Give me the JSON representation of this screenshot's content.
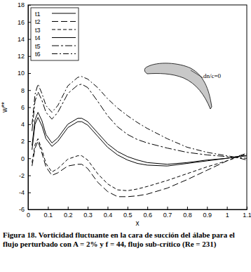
{
  "chart_data": {
    "type": "line",
    "title": "Figura 18. Vorticidad fluctuante en la cara de succión del álabe para el flujo perturbado con A = 2% y f = 44, flujo sub-crítico (Re = 231)",
    "x_label": "x",
    "y_label": "w**",
    "annotations": [
      "dn/c=0"
    ],
    "x": [
      0.02,
      0.035,
      0.05,
      0.07,
      0.09,
      0.12,
      0.15,
      0.2,
      0.25,
      0.27,
      0.3,
      0.35,
      0.4,
      0.45,
      0.5,
      0.55,
      0.6,
      0.7,
      0.8,
      0.9,
      1.0,
      1.05,
      1.1
    ],
    "series": [
      {
        "name": "t1",
        "color": "#000000",
        "line_style": "solid",
        "values": [
          1.0,
          4.0,
          4.8,
          3.8,
          2.3,
          1.4,
          2.0,
          3.6,
          4.3,
          4.3,
          3.9,
          2.6,
          1.3,
          0.4,
          -0.2,
          -0.6,
          -0.8,
          -0.9,
          -0.6,
          -0.3,
          0.0,
          0.2,
          0.3
        ]
      },
      {
        "name": "t2",
        "color": "#000000",
        "line_style": "longdash",
        "values": [
          -0.9,
          1.2,
          2.0,
          0.6,
          -1.0,
          -2.0,
          -1.7,
          -0.9,
          -0.7,
          -0.7,
          -1.2,
          -2.8,
          -3.9,
          -4.5,
          -4.5,
          -4.4,
          -4.2,
          -3.5,
          -2.5,
          -1.4,
          -0.3,
          0.2,
          0.6
        ]
      },
      {
        "name": "t3",
        "color": "#000000",
        "line_style": "dashed",
        "values": [
          -0.5,
          1.6,
          2.3,
          1.0,
          -0.6,
          -1.6,
          -1.2,
          -0.1,
          0.3,
          0.3,
          -0.2,
          -1.8,
          -3.0,
          -3.7,
          -3.8,
          -3.6,
          -3.3,
          -2.6,
          -1.8,
          -1.0,
          -0.3,
          0.1,
          0.5
        ]
      },
      {
        "name": "t4",
        "color": "#000000",
        "line_style": "solid",
        "values": [
          1.5,
          4.5,
          5.4,
          4.4,
          2.8,
          1.8,
          2.4,
          4.0,
          4.7,
          4.7,
          4.3,
          3.0,
          1.7,
          0.8,
          0.2,
          -0.2,
          -0.5,
          -0.7,
          -0.5,
          -0.2,
          0.0,
          0.2,
          0.3
        ]
      },
      {
        "name": "t5",
        "color": "#000000",
        "line_style": "dashdot2",
        "values": [
          3.2,
          6.7,
          7.8,
          6.8,
          5.4,
          4.6,
          5.4,
          7.6,
          8.6,
          8.7,
          8.3,
          6.7,
          5.0,
          3.7,
          2.8,
          2.2,
          1.8,
          1.2,
          0.7,
          0.4,
          0.2,
          0.1,
          0.0
        ]
      },
      {
        "name": "t6",
        "color": "#000000",
        "line_style": "dashdot",
        "values": [
          4.0,
          7.5,
          8.7,
          7.6,
          6.2,
          5.4,
          6.2,
          8.5,
          9.5,
          9.6,
          9.3,
          8.3,
          7.0,
          5.9,
          5.0,
          4.2,
          3.5,
          2.3,
          1.3,
          0.7,
          0.3,
          0.1,
          -0.2
        ]
      }
    ],
    "xlim": [
      0,
      1.1
    ],
    "xticks": [
      0,
      0.1,
      0.2,
      0.3,
      0.4,
      0.5,
      0.6,
      0.7,
      0.8,
      0.9,
      1,
      1.1
    ],
    "ylim": [
      -6,
      18
    ],
    "yticks": [
      -6,
      -4,
      -2,
      0,
      2,
      4,
      6,
      8,
      10,
      12,
      14,
      16,
      18
    ],
    "legend": "top-left",
    "grid": false
  }
}
